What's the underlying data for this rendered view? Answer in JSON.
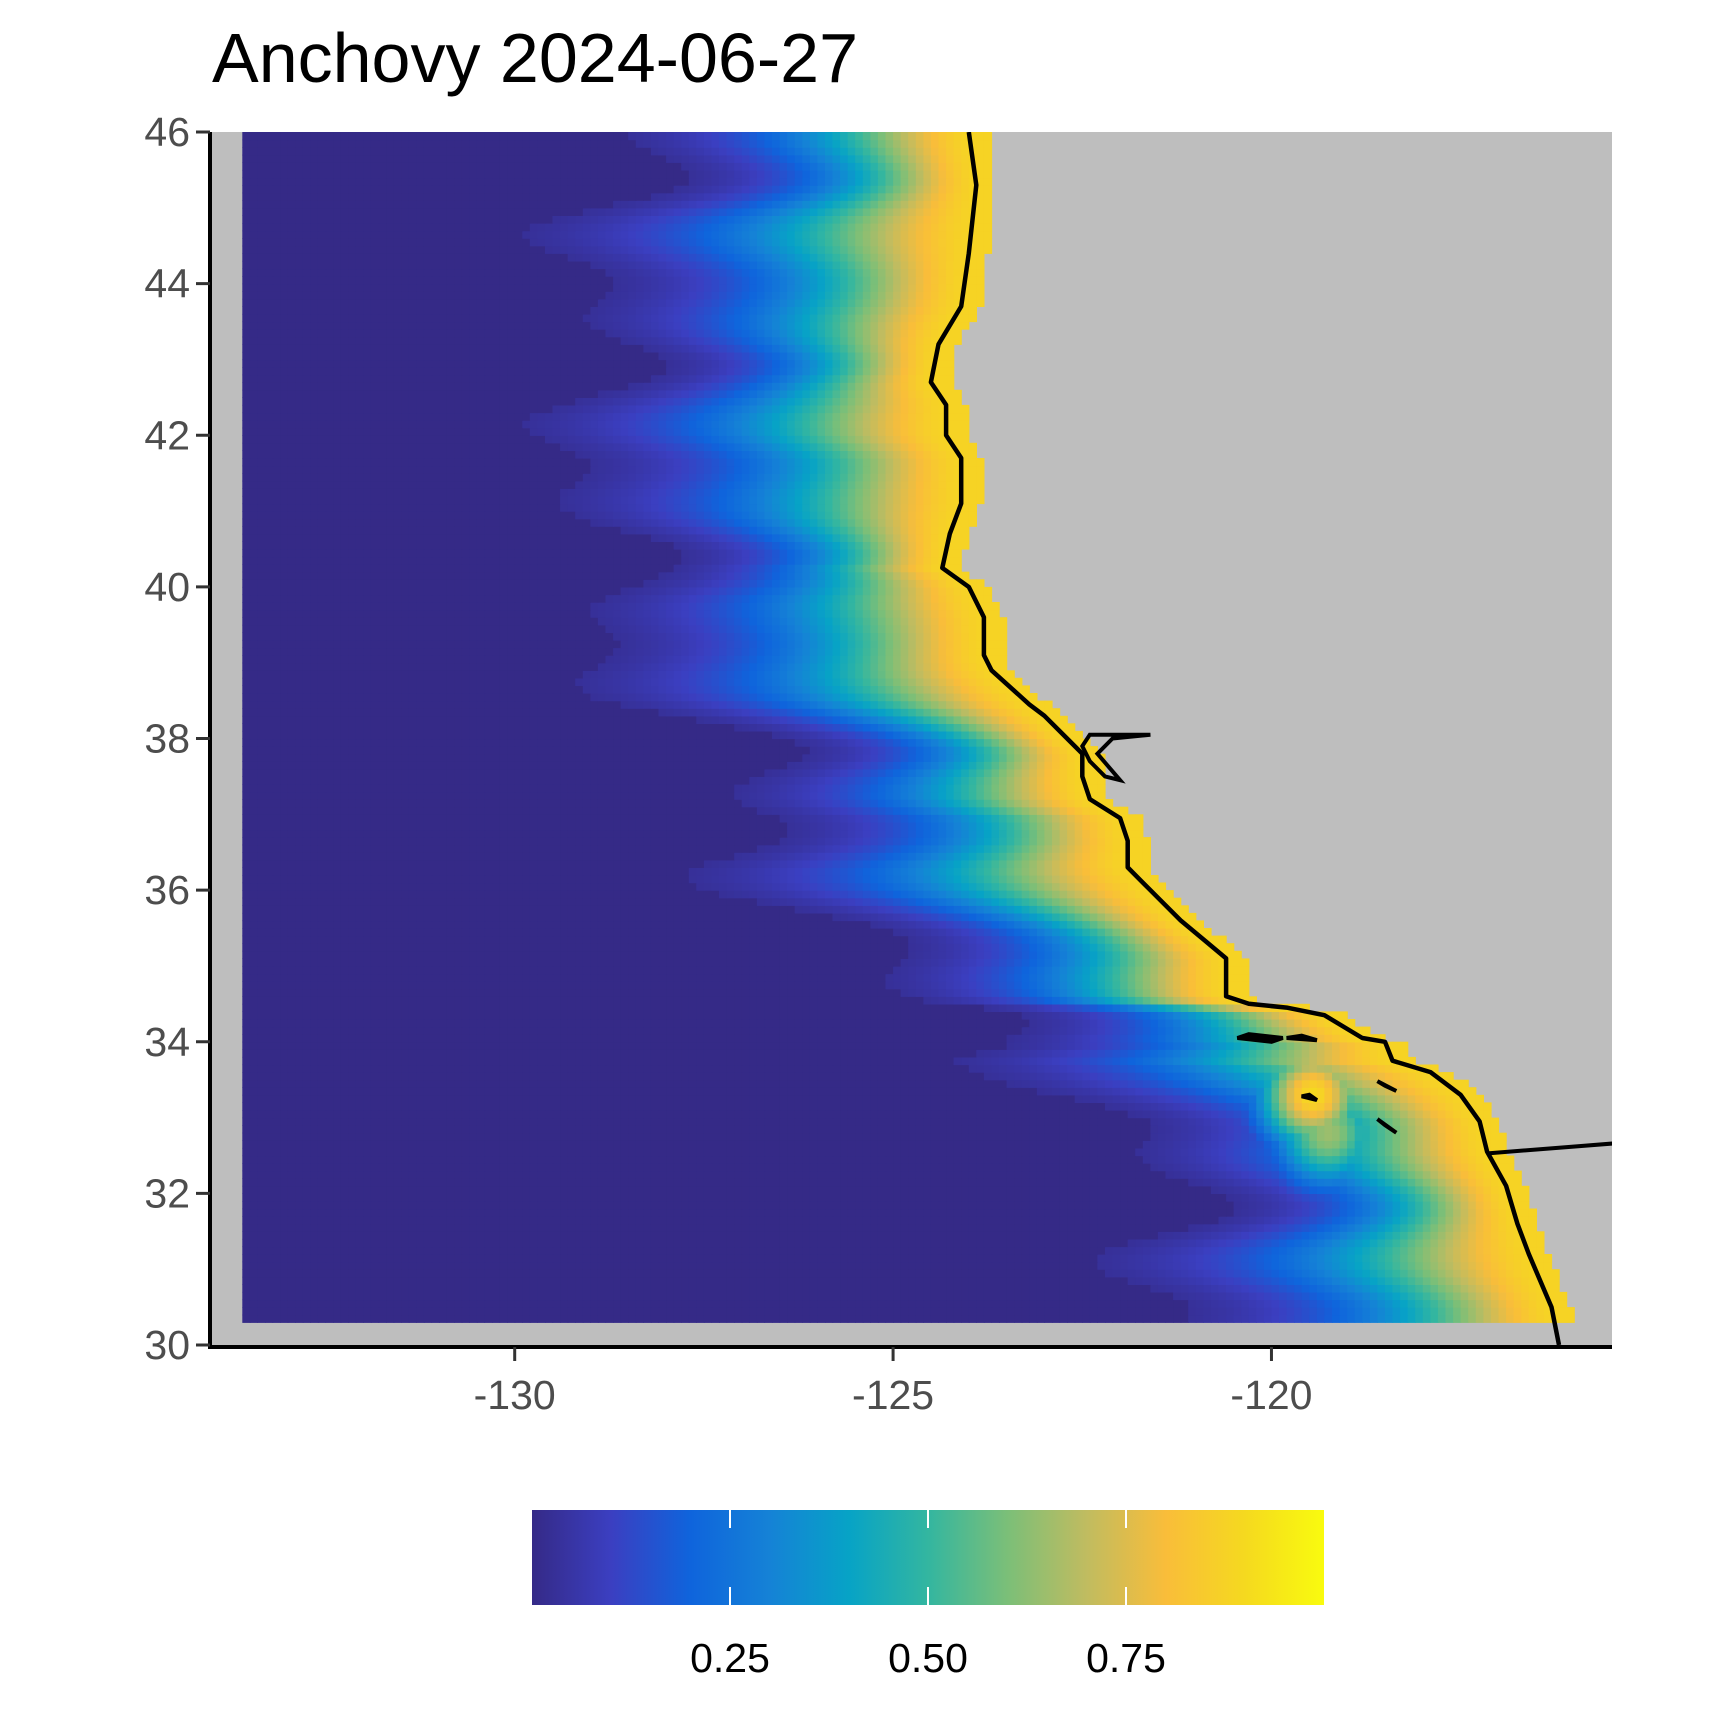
{
  "title": "Anchovy 2024-06-27",
  "chart_data": {
    "type": "heatmap",
    "title": "Anchovy 2024-06-27",
    "xlabel": "",
    "ylabel": "",
    "xlim": [
      -134,
      -115.5
    ],
    "ylim": [
      30,
      46
    ],
    "x_ticks": [
      -130,
      -125,
      -120
    ],
    "y_ticks": [
      30,
      32,
      34,
      36,
      38,
      40,
      42,
      44,
      46
    ],
    "x_tick_labels": [
      "-130",
      "-125",
      "-120"
    ],
    "y_tick_labels": [
      "30",
      "32",
      "34",
      "36",
      "38",
      "40",
      "42",
      "44",
      "46"
    ],
    "grid": false,
    "land_color": "#bebebe",
    "coastline_color": "#000000",
    "colorbar": {
      "position": "bottom",
      "range": [
        0,
        1
      ],
      "ticks": [
        0.25,
        0.5,
        0.75
      ],
      "tick_labels": [
        "0.25",
        "0.50",
        "0.75"
      ],
      "stops": [
        {
          "value": 0.0,
          "color": "#352a87"
        },
        {
          "value": 0.1,
          "color": "#3b3fc1"
        },
        {
          "value": 0.2,
          "color": "#0f64dc"
        },
        {
          "value": 0.3,
          "color": "#1582d6"
        },
        {
          "value": 0.4,
          "color": "#07a3c6"
        },
        {
          "value": 0.5,
          "color": "#33b6a0"
        },
        {
          "value": 0.6,
          "color": "#7bbf78"
        },
        {
          "value": 0.7,
          "color": "#c0bc60"
        },
        {
          "value": 0.8,
          "color": "#f9bd3a"
        },
        {
          "value": 0.9,
          "color": "#f5d91f"
        },
        {
          "value": 1.0,
          "color": "#f9fb0e"
        }
      ]
    },
    "coastline": [
      [
        -124.0,
        46.0
      ],
      [
        -123.9,
        45.3
      ],
      [
        -124.0,
        44.4
      ],
      [
        -124.1,
        43.7
      ],
      [
        -124.4,
        43.2
      ],
      [
        -124.5,
        42.7
      ],
      [
        -124.3,
        42.4
      ],
      [
        -124.3,
        42.0
      ],
      [
        -124.1,
        41.7
      ],
      [
        -124.1,
        41.1
      ],
      [
        -124.25,
        40.7
      ],
      [
        -124.35,
        40.25
      ],
      [
        -124.0,
        40.0
      ],
      [
        -123.8,
        39.6
      ],
      [
        -123.8,
        39.1
      ],
      [
        -123.7,
        38.9
      ],
      [
        -123.2,
        38.45
      ],
      [
        -123.0,
        38.3
      ],
      [
        -122.7,
        38.0
      ],
      [
        -122.5,
        37.8
      ],
      [
        -122.5,
        37.5
      ],
      [
        -122.4,
        37.2
      ],
      [
        -122.0,
        36.95
      ],
      [
        -121.9,
        36.65
      ],
      [
        -121.9,
        36.3
      ],
      [
        -121.5,
        35.9
      ],
      [
        -121.2,
        35.6
      ],
      [
        -120.9,
        35.35
      ],
      [
        -120.6,
        35.1
      ],
      [
        -120.6,
        34.6
      ],
      [
        -120.3,
        34.5
      ],
      [
        -119.8,
        34.45
      ],
      [
        -119.3,
        34.35
      ],
      [
        -118.8,
        34.05
      ],
      [
        -118.5,
        34.0
      ],
      [
        -118.4,
        33.75
      ],
      [
        -117.9,
        33.6
      ],
      [
        -117.5,
        33.3
      ],
      [
        -117.25,
        32.95
      ],
      [
        -117.15,
        32.55
      ],
      [
        -116.9,
        32.1
      ],
      [
        -116.75,
        31.6
      ],
      [
        -116.6,
        31.2
      ],
      [
        -116.3,
        30.5
      ],
      [
        -116.2,
        30.0
      ]
    ],
    "border_line": [
      [
        -117.12,
        32.53
      ],
      [
        -114.7,
        32.72
      ]
    ],
    "bay_outline": [
      [
        -122.5,
        37.9
      ],
      [
        -122.4,
        38.05
      ],
      [
        -122.2,
        38.05
      ],
      [
        -122.0,
        38.05
      ],
      [
        -121.6,
        38.05
      ],
      [
        -122.1,
        38.0
      ],
      [
        -122.3,
        37.8
      ],
      [
        -122.0,
        37.45
      ],
      [
        -122.2,
        37.5
      ],
      [
        -122.4,
        37.7
      ]
    ],
    "islands": [
      {
        "name": "",
        "points": [
          [
            -120.45,
            34.05
          ],
          [
            -120.0,
            34.0
          ],
          [
            -119.85,
            34.05
          ],
          [
            -120.3,
            34.1
          ]
        ]
      },
      {
        "name": "",
        "points": [
          [
            -119.8,
            34.05
          ],
          [
            -119.4,
            34.02
          ],
          [
            -119.6,
            34.08
          ]
        ]
      },
      {
        "name": "",
        "points": [
          [
            -118.6,
            33.48
          ],
          [
            -118.35,
            33.35
          ],
          [
            -118.5,
            33.42
          ]
        ]
      },
      {
        "name": "",
        "points": [
          [
            -119.6,
            33.28
          ],
          [
            -119.4,
            33.23
          ],
          [
            -119.5,
            33.3
          ]
        ]
      },
      {
        "name": "",
        "points": [
          [
            -118.6,
            32.98
          ],
          [
            -118.35,
            32.8
          ],
          [
            -118.5,
            32.9
          ]
        ]
      }
    ],
    "hotspots": [
      {
        "x": -119.5,
        "y": 33.25,
        "value": 0.9
      },
      {
        "x": -118.4,
        "y": 33.1,
        "value": 0.62
      },
      {
        "x": -119.3,
        "y": 32.75,
        "value": 0.65
      }
    ],
    "extents": {
      "ocean_lon": [
        -133.6,
        -116.1
      ],
      "ocean_lat": [
        30.3,
        46.0
      ]
    },
    "gradient_params": {
      "bandwidth_deg": 2.2,
      "peak_value": 0.88
    }
  }
}
